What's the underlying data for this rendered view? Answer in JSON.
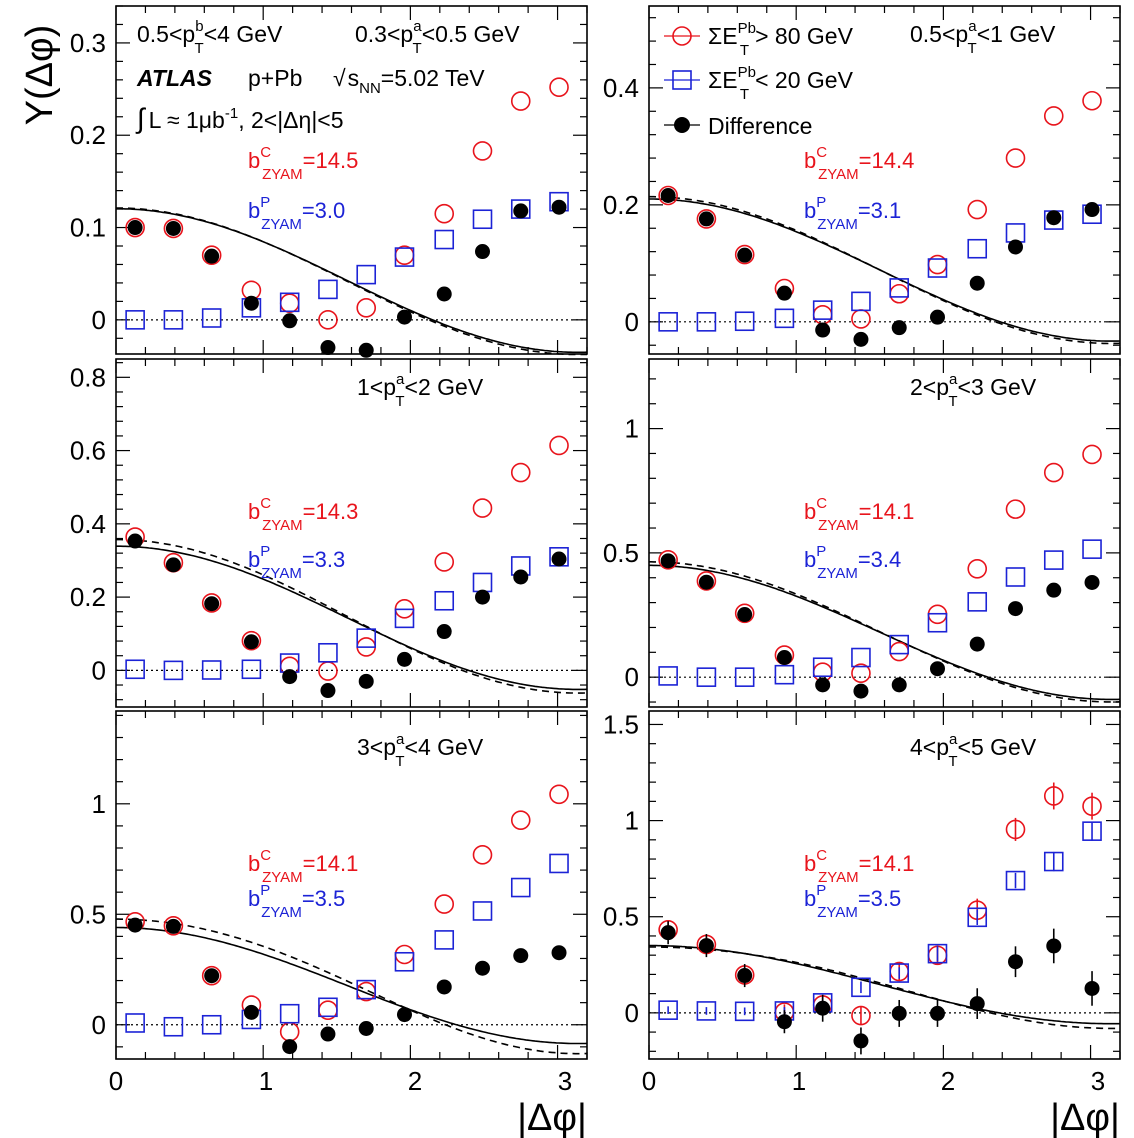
{
  "figure": {
    "ylabel": "Y(Δφ)",
    "xlabel": "|Δφ|",
    "experiment": "ATLAS",
    "system": "p+Pb",
    "energy": "√sNN=5.02 TeV",
    "lumi": "∫ L ≈ 1μb⁻¹, 2<|Δη|<5",
    "trigger_range": "0.5<pTb<4 GeV",
    "legend": {
      "central": "ΣETPb > 80 GeV",
      "peripheral": "ΣETPb < 20 GeV",
      "difference": "Difference"
    },
    "colors": {
      "central": "#e8141c",
      "peripheral": "#1c23d6",
      "difference": "#000000"
    }
  },
  "chart_data": [
    {
      "type": "scatter",
      "panel": "top-left",
      "title": "0.3<pTa<0.5 GeV",
      "xlabel": "|Δφ|",
      "ylabel": "Y(Δφ)",
      "xlim": [
        0,
        3.2
      ],
      "ylim": [
        -0.037,
        0.34
      ],
      "yticks": [
        0,
        0.1,
        0.2,
        0.3
      ],
      "ytick_labels": [
        "0",
        "0.1",
        "0.2",
        "0.3"
      ],
      "b_central": "bCZYAM=14.5",
      "b_peripheral": "bPZYAM=3.0",
      "x": [
        0.13,
        0.39,
        0.65,
        0.92,
        1.18,
        1.44,
        1.7,
        1.96,
        2.23,
        2.49,
        2.75,
        3.01
      ],
      "series": [
        {
          "name": "ΣETPb > 80 GeV",
          "marker": "open-circle",
          "values": [
            0.1,
            0.099,
            0.07,
            0.032,
            0.018,
            0.0,
            0.013,
            0.07,
            0.115,
            0.183,
            0.237,
            0.252
          ]
        },
        {
          "name": "ΣETPb < 20 GeV",
          "marker": "open-square",
          "values": [
            0.0,
            0.0,
            0.002,
            0.013,
            0.019,
            0.033,
            0.049,
            0.068,
            0.087,
            0.109,
            0.12,
            0.128
          ]
        },
        {
          "name": "Difference",
          "marker": "filled-circle",
          "values": [
            0.1,
            0.099,
            0.069,
            0.018,
            -0.001,
            -0.03,
            -0.033,
            0.003,
            0.028,
            0.074,
            0.118,
            0.122
          ]
        }
      ],
      "fits": {
        "solid": {
          "a": 0.0426,
          "b": 0.0778,
          "c": 0.0
        },
        "dashed": {
          "a": 0.0418,
          "b": 0.0794,
          "c": 0.0
        }
      }
    },
    {
      "type": "scatter",
      "panel": "top-right",
      "title": "0.5<pTa<1 GeV",
      "xlabel": "|Δφ|",
      "ylabel": "Y(Δφ)",
      "xlim": [
        0,
        3.2
      ],
      "ylim": [
        -0.055,
        0.54
      ],
      "yticks": [
        0,
        0.2,
        0.4
      ],
      "ytick_labels": [
        "0",
        "0.2",
        "0.4"
      ],
      "b_central": "bCZYAM=14.4",
      "b_peripheral": "bPZYAM=3.1",
      "x": [
        0.13,
        0.39,
        0.65,
        0.92,
        1.18,
        1.44,
        1.7,
        1.96,
        2.23,
        2.49,
        2.75,
        3.01
      ],
      "series": [
        {
          "name": "ΣETPb > 80 GeV",
          "marker": "open-circle",
          "values": [
            0.216,
            0.176,
            0.115,
            0.057,
            0.012,
            0.005,
            0.048,
            0.098,
            0.192,
            0.28,
            0.352,
            0.378
          ]
        },
        {
          "name": "ΣETPb < 20 GeV",
          "marker": "open-square",
          "values": [
            0.0,
            0.0,
            0.001,
            0.006,
            0.02,
            0.035,
            0.058,
            0.092,
            0.125,
            0.152,
            0.174,
            0.184
          ]
        },
        {
          "name": "Difference",
          "marker": "filled-circle",
          "values": [
            0.216,
            0.176,
            0.114,
            0.049,
            -0.014,
            -0.03,
            -0.01,
            0.008,
            0.066,
            0.128,
            0.178,
            0.192
          ]
        }
      ],
      "fits": {
        "solid": {
          "a": 0.0885,
          "b": 0.1215,
          "c": 0.0
        },
        "dashed": {
          "a": 0.0885,
          "b": 0.1255,
          "c": 0.0
        }
      }
    },
    {
      "type": "scatter",
      "panel": "middle-left",
      "title": "1<pTa<2 GeV",
      "xlabel": "|Δφ|",
      "ylabel": "Y(Δφ)",
      "xlim": [
        0,
        3.2
      ],
      "ylim": [
        -0.1,
        0.85
      ],
      "yticks": [
        0,
        0.2,
        0.4,
        0.6,
        0.8
      ],
      "ytick_labels": [
        "0",
        "0.2",
        "0.4",
        "0.6",
        "0.8"
      ],
      "b_central": "bCZYAM=14.3",
      "b_peripheral": "bPZYAM=3.3",
      "x": [
        0.13,
        0.39,
        0.65,
        0.92,
        1.18,
        1.44,
        1.7,
        1.96,
        2.23,
        2.49,
        2.75,
        3.01
      ],
      "series": [
        {
          "name": "ΣETPb > 80 GeV",
          "marker": "open-circle",
          "values": [
            0.364,
            0.294,
            0.184,
            0.081,
            0.011,
            -0.002,
            0.064,
            0.168,
            0.296,
            0.443,
            0.54,
            0.614
          ]
        },
        {
          "name": "ΣETPb < 20 GeV",
          "marker": "open-square",
          "values": [
            0.003,
            0.0,
            0.001,
            0.003,
            0.02,
            0.048,
            0.088,
            0.142,
            0.19,
            0.24,
            0.285,
            0.31
          ]
        },
        {
          "name": "Difference",
          "marker": "filled-circle",
          "values": [
            0.353,
            0.288,
            0.182,
            0.078,
            -0.017,
            -0.055,
            -0.03,
            0.03,
            0.106,
            0.2,
            0.255,
            0.304
          ]
        }
      ],
      "fits": {
        "solid": {
          "a": 0.1435,
          "b": 0.1955,
          "c": 0.0
        },
        "dashed": {
          "a": 0.1475,
          "b": 0.2095,
          "c": 0.0
        }
      }
    },
    {
      "type": "scatter",
      "panel": "middle-right",
      "title": "2<pTa<3 GeV",
      "xlabel": "|Δφ|",
      "ylabel": "Y(Δφ)",
      "xlim": [
        0,
        3.2
      ],
      "ylim": [
        -0.12,
        1.28
      ],
      "yticks": [
        0,
        0.5,
        1
      ],
      "ytick_labels": [
        "0",
        "0.5",
        "1"
      ],
      "b_central": "bCZYAM=14.1",
      "b_peripheral": "bPZYAM=3.4",
      "x": [
        0.13,
        0.39,
        0.65,
        0.92,
        1.18,
        1.44,
        1.7,
        1.96,
        2.23,
        2.49,
        2.75,
        3.01
      ],
      "series": [
        {
          "name": "ΣETPb > 80 GeV",
          "marker": "open-circle",
          "values": [
            0.472,
            0.387,
            0.257,
            0.089,
            0.02,
            0.016,
            0.103,
            0.253,
            0.436,
            0.676,
            0.823,
            0.896
          ]
        },
        {
          "name": "ΣETPb < 20 GeV",
          "marker": "open-square",
          "values": [
            0.005,
            0.0,
            0.0,
            0.01,
            0.04,
            0.079,
            0.131,
            0.219,
            0.303,
            0.403,
            0.471,
            0.515
          ]
        },
        {
          "name": "Difference",
          "marker": "filled-circle",
          "values": [
            0.468,
            0.382,
            0.252,
            0.079,
            -0.031,
            -0.056,
            -0.031,
            0.034,
            0.133,
            0.276,
            0.35,
            0.381
          ]
        }
      ],
      "fits": {
        "solid": {
          "a": 0.1802,
          "b": 0.2697,
          "c": 0.0
        },
        "dashed": {
          "a": 0.1822,
          "b": 0.2818,
          "c": 0.0
        }
      }
    },
    {
      "type": "scatter",
      "panel": "bottom-left",
      "title": "3<pTa<4 GeV",
      "xlabel": "|Δφ|",
      "ylabel": "Y(Δφ)",
      "xlim": [
        0,
        3.2
      ],
      "ylim": [
        -0.155,
        1.42
      ],
      "yticks": [
        0,
        0.5,
        1
      ],
      "ytick_labels": [
        "0",
        "0.5",
        "1"
      ],
      "b_central": "bCZYAM=14.1",
      "b_peripheral": "bPZYAM=3.5",
      "x": [
        0.13,
        0.39,
        0.65,
        0.92,
        1.18,
        1.44,
        1.7,
        1.96,
        2.23,
        2.49,
        2.75,
        3.01
      ],
      "series": [
        {
          "name": "ΣETPb > 80 GeV",
          "marker": "open-circle",
          "values": [
            0.466,
            0.448,
            0.222,
            0.089,
            -0.032,
            0.066,
            0.15,
            0.318,
            0.546,
            0.769,
            0.926,
            1.043
          ]
        },
        {
          "name": "ΣETPb < 20 GeV",
          "marker": "open-square",
          "values": [
            0.008,
            -0.009,
            0.0,
            0.024,
            0.05,
            0.079,
            0.159,
            0.285,
            0.384,
            0.515,
            0.621,
            0.73
          ]
        },
        {
          "name": "Difference",
          "marker": "filled-circle",
          "values": [
            0.451,
            0.445,
            0.222,
            0.056,
            -0.099,
            -0.042,
            -0.017,
            0.046,
            0.171,
            0.256,
            0.313,
            0.326
          ]
        }
      ],
      "fits": {
        "solid": {
          "a": 0.1775,
          "b": 0.2625,
          "c": 0.0
        },
        "dashed": {
          "a": 0.1855,
          "b": 0.3045,
          "c": -0.24
        }
      }
    },
    {
      "type": "scatter",
      "panel": "bottom-right",
      "title": "4<pTa<5 GeV",
      "xlabel": "|Δφ|",
      "ylabel": "Y(Δφ)",
      "xlim": [
        0,
        3.2
      ],
      "ylim": [
        -0.24,
        1.57
      ],
      "yticks": [
        0,
        0.5,
        1,
        1.5
      ],
      "ytick_labels": [
        "0",
        "0.5",
        "1",
        "1.5"
      ],
      "b_central": "bCZYAM=14.1",
      "b_peripheral": "bPZYAM=3.5",
      "x": [
        0.13,
        0.39,
        0.65,
        0.92,
        1.18,
        1.44,
        1.7,
        1.96,
        2.23,
        2.49,
        2.75,
        3.01
      ],
      "series": [
        {
          "name": "ΣETPb > 80 GeV",
          "marker": "open-circle",
          "values": [
            0.432,
            0.356,
            0.197,
            0.004,
            0.041,
            -0.014,
            0.215,
            0.299,
            0.534,
            0.954,
            1.128,
            1.075
          ],
          "errors": [
            0.04,
            0.04,
            0.04,
            0.04,
            0.04,
            0.05,
            0.05,
            0.05,
            0.06,
            0.06,
            0.07,
            0.07
          ]
        },
        {
          "name": "ΣETPb < 20 GeV",
          "marker": "open-square",
          "values": [
            0.014,
            0.01,
            0.008,
            0.01,
            0.052,
            0.133,
            0.207,
            0.308,
            0.497,
            0.688,
            0.787,
            0.945
          ],
          "errors": [
            0.02,
            0.02,
            0.02,
            0.02,
            0.03,
            0.03,
            0.03,
            0.04,
            0.04,
            0.04,
            0.05,
            0.05
          ]
        },
        {
          "name": "Difference",
          "marker": "filled-circle",
          "values": [
            0.417,
            0.35,
            0.194,
            -0.046,
            0.024,
            -0.146,
            -0.003,
            -0.003,
            0.048,
            0.266,
            0.348,
            0.127
          ],
          "errors": [
            0.06,
            0.06,
            0.06,
            0.06,
            0.07,
            0.07,
            0.07,
            0.07,
            0.08,
            0.08,
            0.09,
            0.09
          ]
        }
      ],
      "fits": {
        "solid": {
          "a": 0.1467,
          "b": 0.2032,
          "c": 0.0
        },
        "dashed": {
          "a": 0.1429,
          "b": 0.2116,
          "c": -0.24
        }
      }
    }
  ]
}
